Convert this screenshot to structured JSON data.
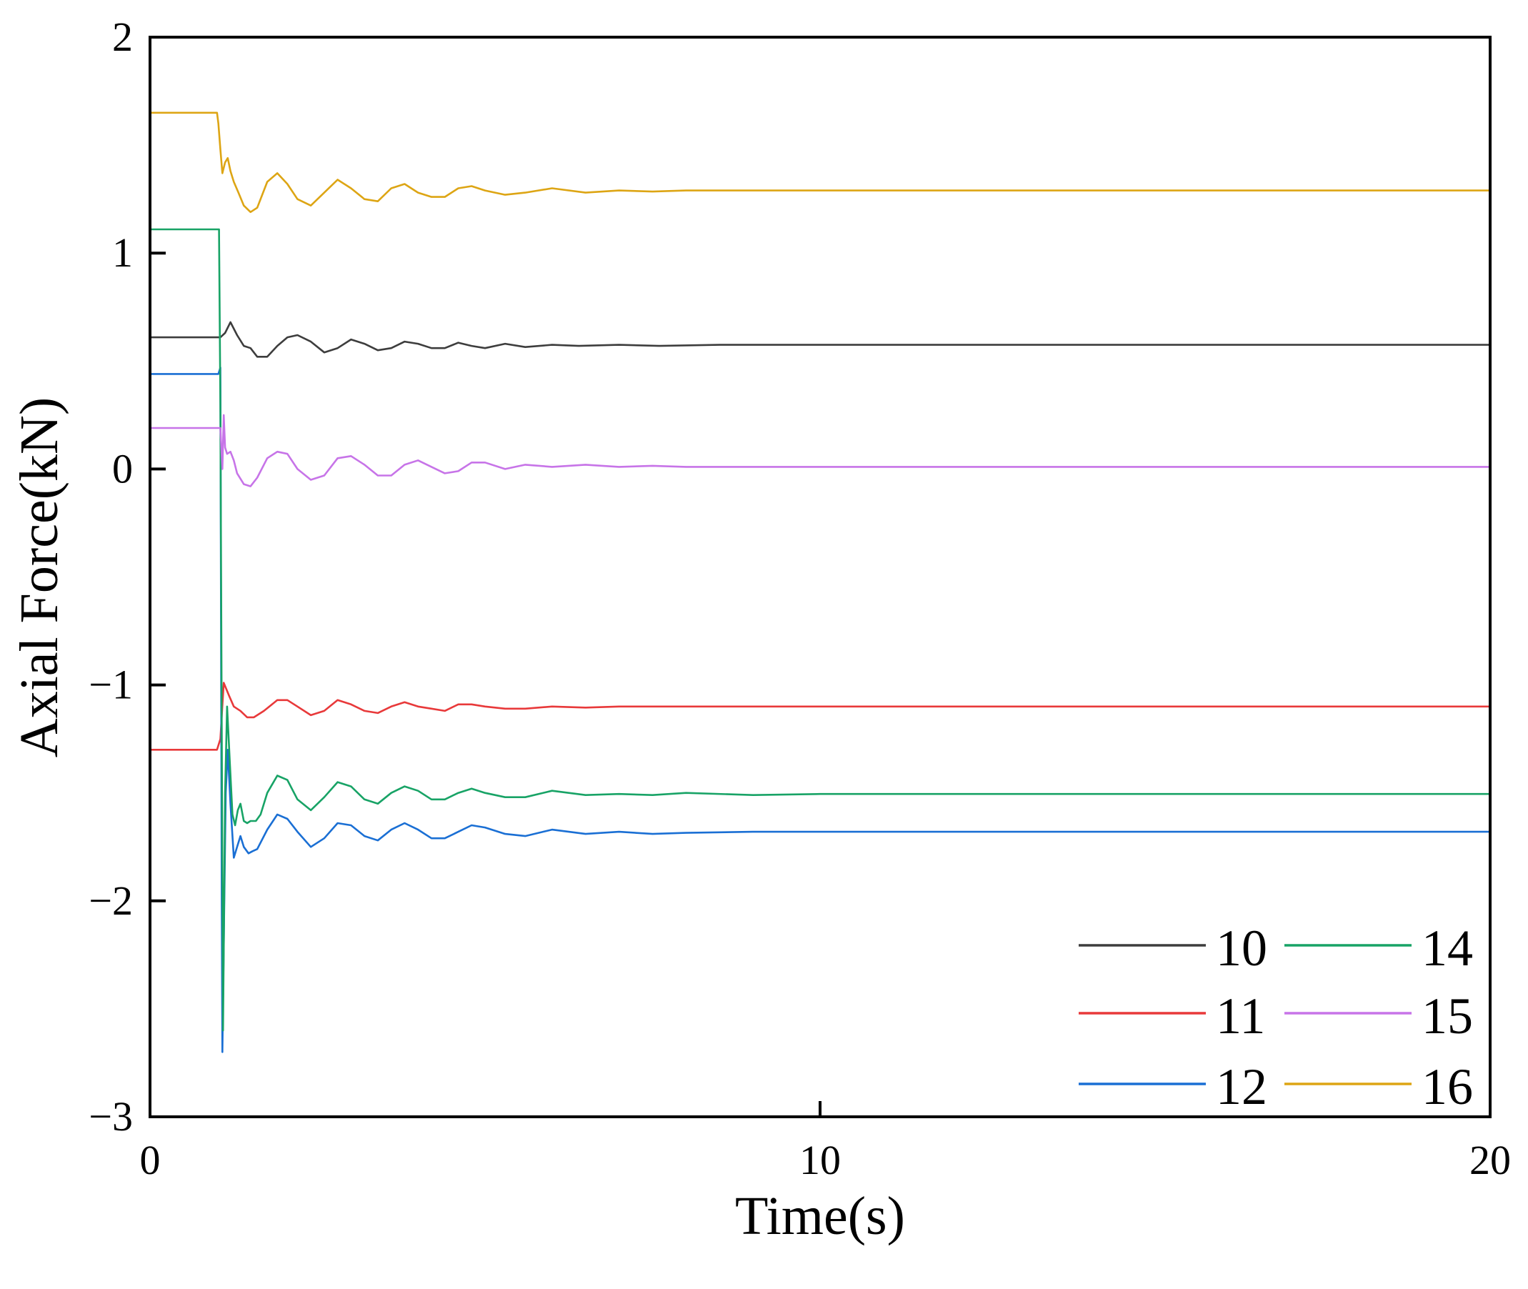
{
  "chart_data": {
    "type": "line",
    "xlabel": "Time(s)",
    "ylabel": "Axial Force(kN)",
    "xlim": [
      0,
      20
    ],
    "ylim": [
      -3,
      2
    ],
    "xticks": [
      0,
      10,
      20
    ],
    "yticks": [
      -3,
      -2,
      -1,
      0,
      1,
      2
    ],
    "x_tick_labels": [
      "0",
      "10",
      "20"
    ],
    "y_tick_labels": [
      "−3",
      "−2",
      "−1",
      "0",
      "1",
      "2"
    ],
    "grid": false,
    "legend_position": "bottom-right",
    "series": [
      {
        "name": "10",
        "color": "#3d3d3d",
        "x": [
          0,
          1.0,
          1.05,
          1.12,
          1.2,
          1.3,
          1.4,
          1.5,
          1.6,
          1.75,
          1.9,
          2.05,
          2.2,
          2.4,
          2.6,
          2.8,
          3.0,
          3.2,
          3.4,
          3.6,
          3.8,
          4.0,
          4.2,
          4.4,
          4.6,
          4.8,
          5.0,
          5.3,
          5.6,
          6.0,
          6.4,
          7.0,
          7.6,
          8.5,
          10.0,
          20.0
        ],
        "y": [
          0.61,
          0.61,
          0.61,
          0.63,
          0.68,
          0.62,
          0.57,
          0.56,
          0.52,
          0.52,
          0.57,
          0.61,
          0.62,
          0.59,
          0.54,
          0.56,
          0.6,
          0.58,
          0.55,
          0.56,
          0.59,
          0.58,
          0.56,
          0.56,
          0.585,
          0.57,
          0.56,
          0.58,
          0.565,
          0.575,
          0.57,
          0.575,
          0.57,
          0.575,
          0.575,
          0.575
        ]
      },
      {
        "name": "11",
        "color": "#e8393a",
        "x": [
          0,
          1.0,
          1.05,
          1.1,
          1.18,
          1.25,
          1.35,
          1.45,
          1.55,
          1.7,
          1.9,
          2.05,
          2.2,
          2.4,
          2.6,
          2.8,
          3.0,
          3.2,
          3.4,
          3.6,
          3.8,
          4.0,
          4.2,
          4.4,
          4.6,
          4.8,
          5.0,
          5.3,
          5.6,
          6.0,
          6.5,
          7.0,
          8.0,
          10.0,
          20.0
        ],
        "y": [
          -1.3,
          -1.3,
          -1.25,
          -0.99,
          -1.05,
          -1.1,
          -1.12,
          -1.15,
          -1.15,
          -1.12,
          -1.07,
          -1.07,
          -1.1,
          -1.14,
          -1.12,
          -1.07,
          -1.09,
          -1.12,
          -1.13,
          -1.1,
          -1.08,
          -1.1,
          -1.11,
          -1.12,
          -1.09,
          -1.09,
          -1.1,
          -1.11,
          -1.11,
          -1.1,
          -1.105,
          -1.1,
          -1.1,
          -1.1,
          -1.1
        ]
      },
      {
        "name": "12",
        "color": "#1a6fd4",
        "x": [
          0,
          0.98,
          1.02,
          1.05,
          1.07,
          1.08,
          1.1,
          1.13,
          1.16,
          1.2,
          1.25,
          1.3,
          1.35,
          1.4,
          1.47,
          1.53,
          1.6,
          1.75,
          1.9,
          2.05,
          2.2,
          2.4,
          2.6,
          2.8,
          3.0,
          3.2,
          3.4,
          3.6,
          3.8,
          4.0,
          4.2,
          4.4,
          4.6,
          4.8,
          5.0,
          5.3,
          5.6,
          6.0,
          6.5,
          7.0,
          7.5,
          8.0,
          9.0,
          10.0,
          20.0
        ],
        "y": [
          0.44,
          0.44,
          0.44,
          0.47,
          -2.0,
          -2.7,
          -2.2,
          -1.5,
          -1.3,
          -1.55,
          -1.8,
          -1.75,
          -1.7,
          -1.75,
          -1.78,
          -1.77,
          -1.76,
          -1.67,
          -1.6,
          -1.62,
          -1.68,
          -1.75,
          -1.71,
          -1.64,
          -1.65,
          -1.7,
          -1.72,
          -1.67,
          -1.64,
          -1.67,
          -1.71,
          -1.71,
          -1.68,
          -1.65,
          -1.66,
          -1.69,
          -1.7,
          -1.67,
          -1.69,
          -1.68,
          -1.69,
          -1.685,
          -1.68,
          -1.68,
          -1.68
        ]
      },
      {
        "name": "14",
        "color": "#18a366",
        "x": [
          0,
          0.98,
          1.0,
          1.03,
          1.05,
          1.07,
          1.09,
          1.12,
          1.15,
          1.19,
          1.23,
          1.27,
          1.31,
          1.35,
          1.4,
          1.45,
          1.5,
          1.58,
          1.65,
          1.75,
          1.9,
          2.05,
          2.2,
          2.4,
          2.6,
          2.8,
          3.0,
          3.2,
          3.4,
          3.6,
          3.8,
          4.0,
          4.2,
          4.4,
          4.6,
          4.8,
          5.0,
          5.3,
          5.6,
          6.0,
          6.5,
          7.0,
          7.5,
          8.0,
          9.0,
          10.0,
          20.0
        ],
        "y": [
          1.11,
          1.11,
          1.11,
          1.11,
          0.3,
          -1.2,
          -2.6,
          -1.5,
          -1.1,
          -1.35,
          -1.6,
          -1.65,
          -1.58,
          -1.55,
          -1.63,
          -1.64,
          -1.63,
          -1.63,
          -1.6,
          -1.5,
          -1.42,
          -1.44,
          -1.53,
          -1.58,
          -1.52,
          -1.45,
          -1.47,
          -1.53,
          -1.55,
          -1.5,
          -1.47,
          -1.49,
          -1.53,
          -1.53,
          -1.5,
          -1.48,
          -1.5,
          -1.52,
          -1.52,
          -1.49,
          -1.51,
          -1.505,
          -1.51,
          -1.5,
          -1.51,
          -1.505,
          -1.505
        ]
      },
      {
        "name": "15",
        "color": "#c774e8",
        "x": [
          0,
          1.0,
          1.05,
          1.08,
          1.1,
          1.12,
          1.15,
          1.2,
          1.25,
          1.3,
          1.4,
          1.5,
          1.6,
          1.75,
          1.9,
          2.05,
          2.2,
          2.4,
          2.6,
          2.8,
          3.0,
          3.2,
          3.4,
          3.6,
          3.8,
          4.0,
          4.2,
          4.4,
          4.6,
          4.8,
          5.0,
          5.3,
          5.6,
          6.0,
          6.5,
          7.0,
          7.5,
          8.0,
          9.0,
          10.0,
          20.0
        ],
        "y": [
          0.19,
          0.19,
          0.19,
          0.0,
          0.25,
          0.1,
          0.07,
          0.08,
          0.04,
          -0.02,
          -0.07,
          -0.08,
          -0.04,
          0.05,
          0.08,
          0.07,
          0.0,
          -0.05,
          -0.03,
          0.05,
          0.06,
          0.02,
          -0.03,
          -0.03,
          0.02,
          0.04,
          0.01,
          -0.02,
          -0.01,
          0.03,
          0.03,
          0.0,
          0.02,
          0.01,
          0.02,
          0.01,
          0.015,
          0.01,
          0.01,
          0.01,
          0.01
        ]
      },
      {
        "name": "16",
        "color": "#dda514",
        "x": [
          0,
          1.0,
          1.02,
          1.05,
          1.08,
          1.12,
          1.16,
          1.2,
          1.25,
          1.32,
          1.4,
          1.5,
          1.6,
          1.75,
          1.9,
          2.05,
          2.2,
          2.4,
          2.6,
          2.8,
          3.0,
          3.2,
          3.4,
          3.6,
          3.8,
          4.0,
          4.2,
          4.4,
          4.6,
          4.8,
          5.0,
          5.3,
          5.6,
          6.0,
          6.5,
          7.0,
          7.5,
          8.0,
          9.0,
          10.0,
          20.0
        ],
        "y": [
          1.65,
          1.65,
          1.6,
          1.48,
          1.37,
          1.42,
          1.44,
          1.38,
          1.33,
          1.28,
          1.22,
          1.19,
          1.21,
          1.33,
          1.37,
          1.32,
          1.25,
          1.22,
          1.28,
          1.34,
          1.3,
          1.25,
          1.24,
          1.3,
          1.32,
          1.28,
          1.26,
          1.26,
          1.3,
          1.31,
          1.29,
          1.27,
          1.28,
          1.3,
          1.28,
          1.29,
          1.285,
          1.29,
          1.29,
          1.29,
          1.29
        ]
      }
    ]
  }
}
